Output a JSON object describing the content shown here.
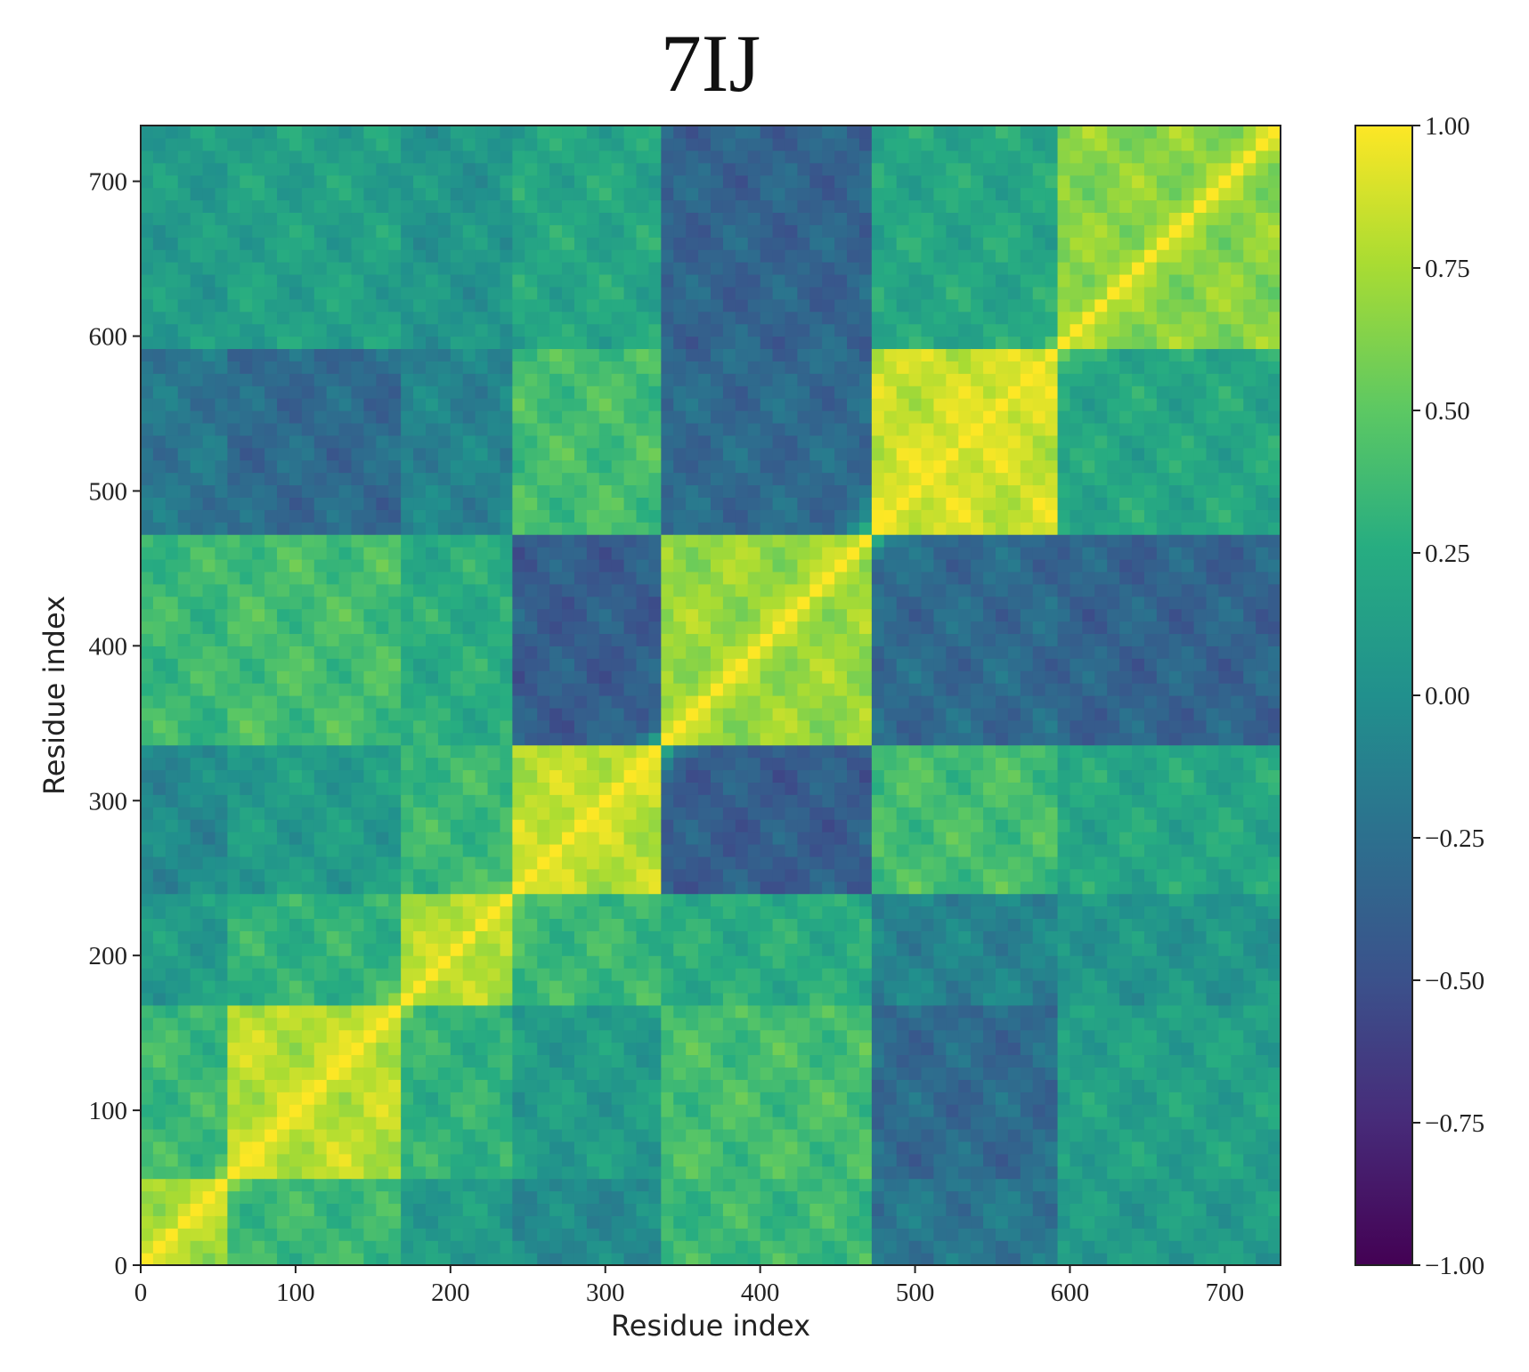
{
  "chart_data": {
    "type": "heatmap",
    "title": "7IJ",
    "xlabel": "Residue index",
    "ylabel": "Residue index",
    "xlim": [
      0,
      736
    ],
    "ylim": [
      0,
      736
    ],
    "x_ticks": [
      0,
      100,
      200,
      300,
      400,
      500,
      600,
      700
    ],
    "y_ticks": [
      0,
      100,
      200,
      300,
      400,
      500,
      600,
      700
    ],
    "colorbar": {
      "colormap": "viridis",
      "range": [
        -1.0,
        1.0
      ],
      "ticks": [
        "1.00",
        "0.75",
        "0.50",
        "0.25",
        "0.00",
        "−0.25",
        "−0.50",
        "−0.75",
        "−1.00"
      ],
      "tick_values": [
        1.0,
        0.75,
        0.5,
        0.25,
        0.0,
        -0.25,
        -0.5,
        -0.75,
        -1.0
      ]
    },
    "matrix": {
      "description_free": true,
      "size": 736,
      "diagonal_value": 1.0,
      "domain_boundaries": [
        0,
        55,
        165,
        240,
        335,
        475,
        590,
        736
      ],
      "block_means": [
        [
          0.75,
          0.35,
          0.1,
          -0.05,
          0.35,
          -0.2,
          0.1
        ],
        [
          0.35,
          0.8,
          0.3,
          0.1,
          0.4,
          -0.3,
          0.15
        ],
        [
          0.1,
          0.3,
          0.75,
          0.35,
          0.25,
          -0.1,
          0.05
        ],
        [
          -0.05,
          0.1,
          0.35,
          0.8,
          -0.4,
          0.4,
          0.2
        ],
        [
          0.35,
          0.4,
          0.25,
          -0.4,
          0.7,
          -0.3,
          -0.35
        ],
        [
          -0.2,
          -0.3,
          -0.1,
          0.4,
          -0.3,
          0.85,
          0.2
        ],
        [
          0.1,
          0.15,
          0.05,
          0.2,
          -0.35,
          0.2,
          0.65
        ]
      ]
    }
  }
}
